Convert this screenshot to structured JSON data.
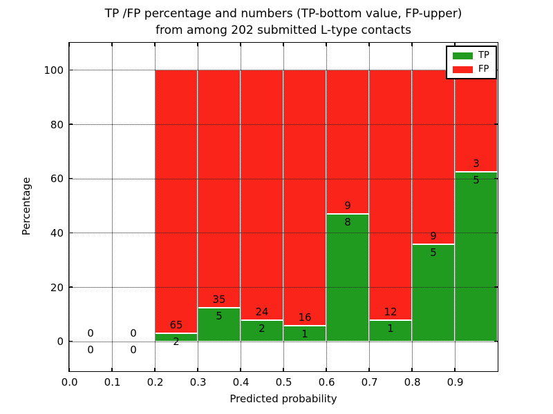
{
  "title": {
    "line1": "TP /FP percentage and numbers (TP-bottom value, FP-upper)",
    "line2": "from among 202 submitted L-type contacts"
  },
  "axes": {
    "xlabel": "Predicted probability",
    "ylabel": "Percentage"
  },
  "legend": {
    "position": "upper right",
    "items": [
      {
        "label": "TP",
        "color": "#209b20"
      },
      {
        "label": "FP",
        "color": "#fb241b"
      }
    ]
  },
  "chart_data": {
    "type": "bar",
    "stacked": true,
    "normalized": "each bin stacked to 100 percent",
    "title": "TP /FP percentage and numbers (TP-bottom value, FP-upper) from among 202 submitted L-type contacts",
    "xlabel": "Predicted probability",
    "ylabel": "Percentage",
    "total_contacts": 202,
    "bin_edges": [
      0.0,
      0.1,
      0.2,
      0.3,
      0.4,
      0.5,
      0.6,
      0.7,
      0.8,
      0.9,
      1.0
    ],
    "series": [
      {
        "name": "TP",
        "color": "#209b20",
        "counts": [
          0,
          0,
          2,
          5,
          2,
          1,
          8,
          1,
          5,
          5
        ]
      },
      {
        "name": "FP",
        "color": "#fb241b",
        "counts": [
          0,
          0,
          65,
          35,
          24,
          16,
          9,
          12,
          9,
          3
        ]
      }
    ],
    "tp_percent_by_bin": [
      0,
      0,
      2.99,
      12.5,
      7.69,
      5.88,
      47.06,
      7.69,
      35.71,
      62.5
    ],
    "xlim": [
      0,
      1
    ],
    "ylim": [
      -11,
      110
    ],
    "x_tick_values": [
      0,
      0.1,
      0.2,
      0.3,
      0.4,
      0.5,
      0.6,
      0.7,
      0.8,
      0.9
    ],
    "x_tick_labels": [
      "0.0",
      "0.1",
      "0.2",
      "0.3",
      "0.4",
      "0.5",
      "0.6",
      "0.7",
      "0.8",
      "0.9"
    ],
    "y_tick_values": [
      0,
      20,
      40,
      60,
      80,
      100
    ],
    "y_tick_labels": [
      "0",
      "20",
      "40",
      "60",
      "80",
      "100"
    ],
    "grid": true,
    "legend_position": "upper right"
  }
}
